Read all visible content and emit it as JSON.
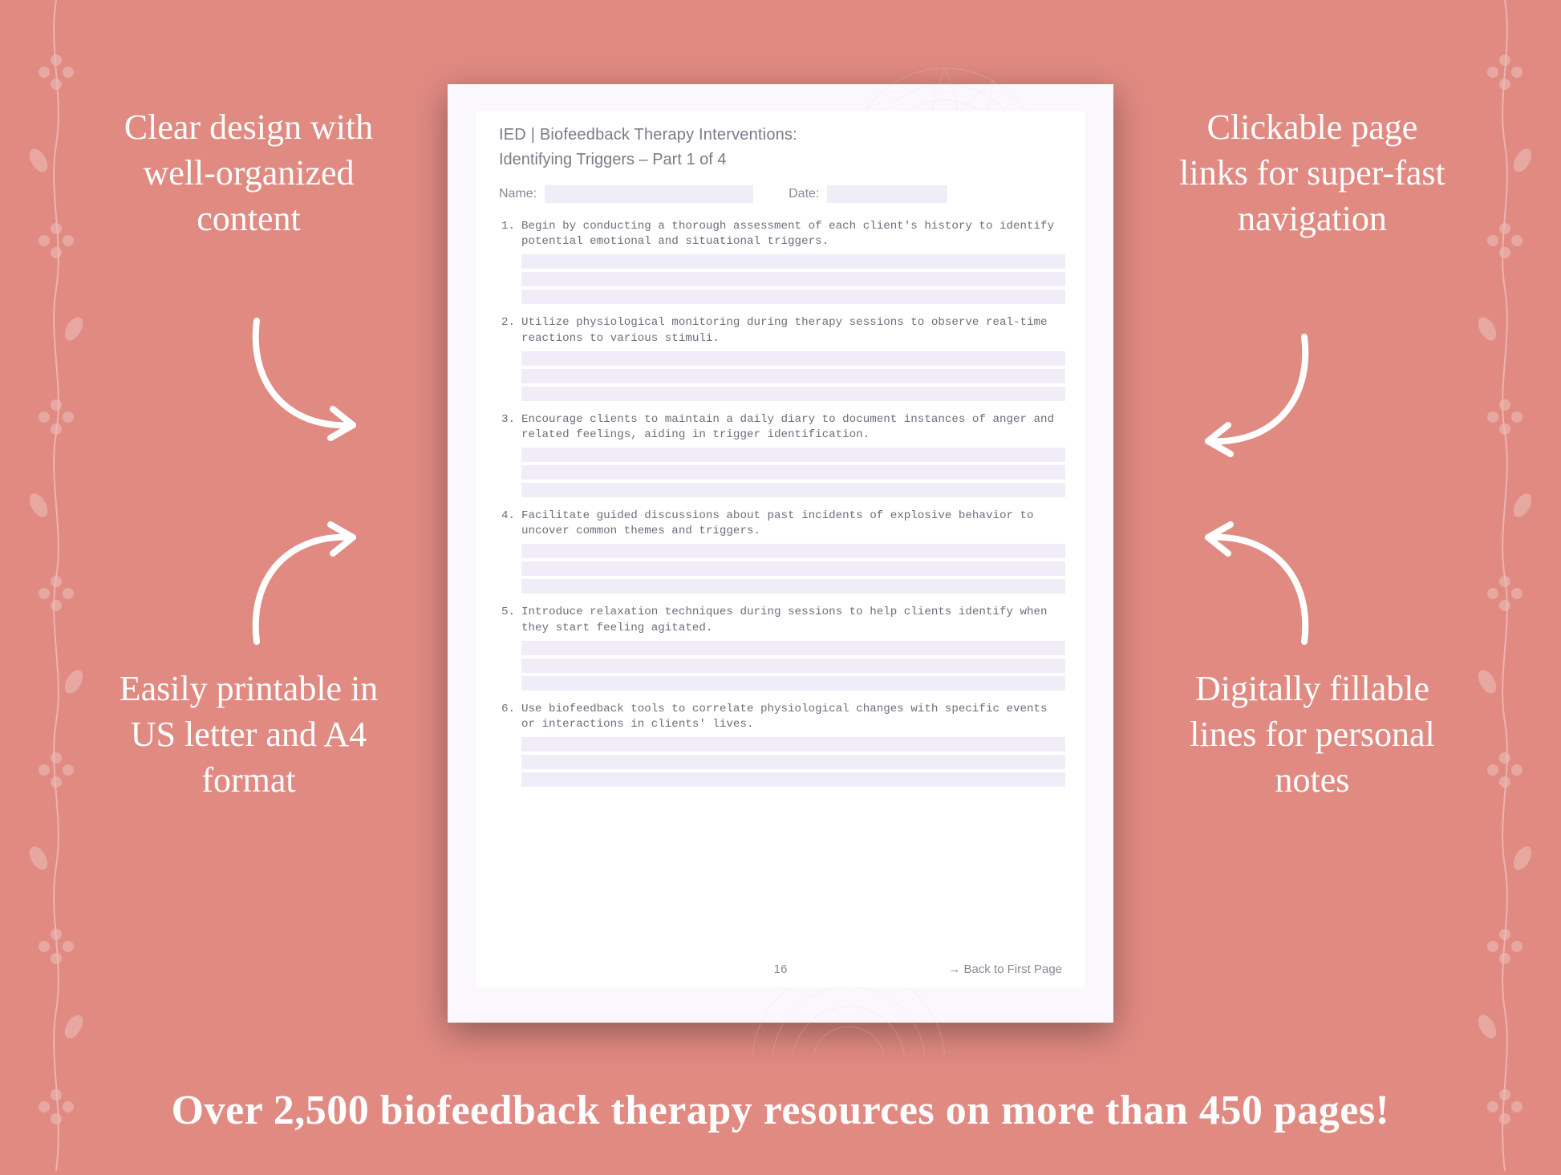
{
  "background_color": "#e08a82",
  "page_bg": "#fbf8fd",
  "page_inner_bg": "#ffffff",
  "field_fill": "#f1edf8",
  "text_color_white": "#ffffff",
  "doc_text_color": "#6d6b7a",
  "callouts": {
    "tl": "Clear design with well-organized content",
    "tr": "Clickable page links for super-fast navigation",
    "bl": "Easily printable in US letter and A4 format",
    "br": "Digitally fillable lines for personal notes"
  },
  "callout_fontsize": 44,
  "banner": "Over 2,500 biofeedback therapy resources on more than 450 pages!",
  "banner_fontsize": 52,
  "document": {
    "title": "IED | Biofeedback Therapy Interventions:",
    "subtitle": "Identifying Triggers  – Part 1 of 4",
    "name_label": "Name:",
    "date_label": "Date:",
    "items": [
      "Begin by conducting a thorough assessment of each client's history to identify potential emotional and situational triggers.",
      "Utilize physiological monitoring during therapy sessions to observe real-time reactions to various stimuli.",
      "Encourage clients to maintain a daily diary to document instances of anger and related feelings, aiding in trigger identification.",
      "Facilitate guided discussions about past incidents of explosive behavior to uncover common themes and triggers.",
      "Introduce relaxation techniques during sessions to help clients identify when they start feeling agitated.",
      "Use biofeedback tools to correlate physiological changes with specific events or interactions in clients' lives."
    ],
    "lines_per_item": 3,
    "page_number": "16",
    "back_link": "→ Back to First Page"
  },
  "arrow_color": "#ffffff",
  "arrow_stroke": 8
}
